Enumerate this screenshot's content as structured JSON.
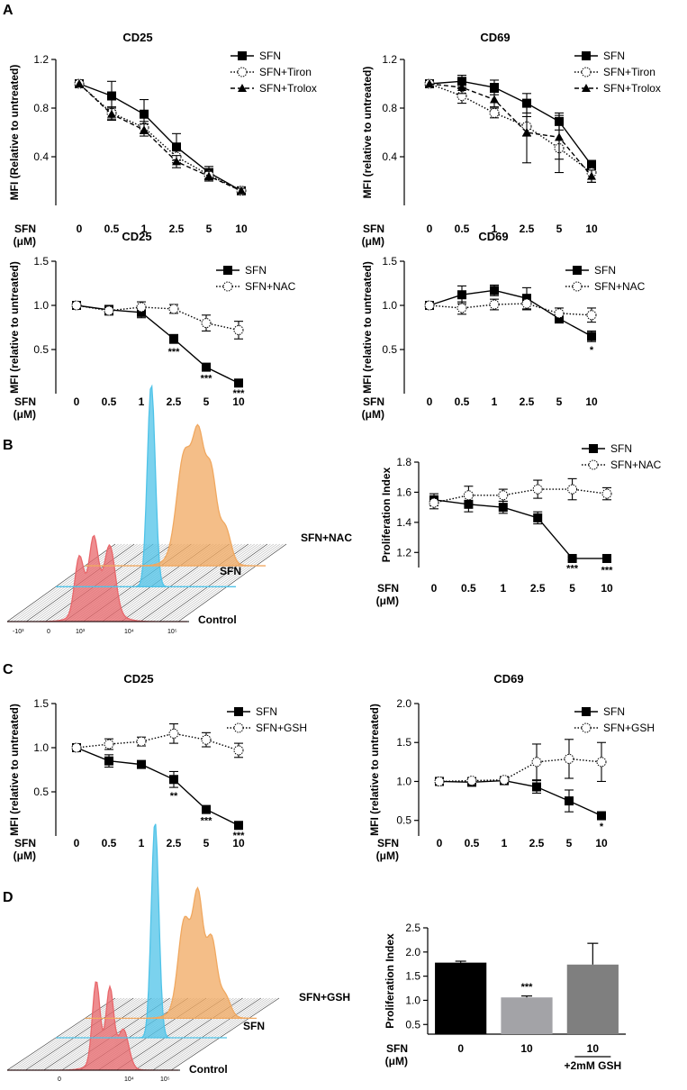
{
  "panels": [
    {
      "letter": "A"
    },
    {
      "letter": "B"
    },
    {
      "letter": "C"
    },
    {
      "letter": "D"
    }
  ],
  "flow": [
    {
      "labels": [
        "SFN+NAC",
        "SFN",
        "Control"
      ],
      "ticks": [
        "-10³",
        "0",
        "10³",
        "10⁴",
        "10⁵"
      ]
    },
    {
      "labels": [
        "SFN+GSH",
        "SFN",
        "Control"
      ],
      "ticks": [
        "0",
        "10⁴",
        "10⁵"
      ]
    }
  ],
  "colors": {
    "control": "#e8676b",
    "sfn": "#4fc3e8",
    "treated": "#f0a860"
  },
  "chart_data": [
    {
      "type": "line",
      "title": "CD25",
      "ylabel": "MFI (Relative to untreated)",
      "xprefix": [
        "SFN",
        "(μM)"
      ],
      "categories": [
        "0",
        "0.5",
        "1",
        "2.5",
        "5",
        "10"
      ],
      "ylim": [
        0,
        1.2
      ],
      "yticks": [
        "0.4",
        "0.8",
        "1.2"
      ],
      "series": [
        {
          "name": "SFN",
          "values": [
            1.0,
            0.9,
            0.75,
            0.48,
            0.27,
            0.12
          ],
          "err": [
            0,
            0.12,
            0.12,
            0.11,
            0.05,
            0.03
          ],
          "style": "solid",
          "marker": "square"
        },
        {
          "name": "SFN+Tiron",
          "values": [
            1.0,
            0.76,
            0.64,
            0.4,
            0.25,
            0.12
          ],
          "err": [
            0,
            0.05,
            0.05,
            0.05,
            0.04,
            0.02
          ],
          "style": "dotted",
          "marker": "circle"
        },
        {
          "name": "SFN+Trolox",
          "values": [
            1.0,
            0.75,
            0.62,
            0.36,
            0.24,
            0.12
          ],
          "err": [
            0,
            0.05,
            0.05,
            0.05,
            0.04,
            0.02
          ],
          "style": "dashed",
          "marker": "triangle"
        }
      ],
      "stars": []
    },
    {
      "type": "line",
      "title": "CD69",
      "ylabel": "MFI (relative to untreated)",
      "xprefix": [
        "SFN",
        "(μM)"
      ],
      "categories": [
        "0",
        "0.5",
        "1",
        "2.5",
        "5",
        "10"
      ],
      "ylim": [
        0,
        1.2
      ],
      "yticks": [
        "0.4",
        "0.8",
        "1.2"
      ],
      "series": [
        {
          "name": "SFN",
          "values": [
            1.0,
            1.02,
            0.97,
            0.84,
            0.69,
            0.33
          ],
          "err": [
            0,
            0.05,
            0.06,
            0.08,
            0.07,
            0.04
          ],
          "style": "solid",
          "marker": "square"
        },
        {
          "name": "SFN+Tiron",
          "values": [
            1.0,
            0.9,
            0.76,
            0.65,
            0.47,
            0.27
          ],
          "err": [
            0,
            0.06,
            0.04,
            0.08,
            0.2,
            0.08
          ],
          "style": "dotted",
          "marker": "circle"
        },
        {
          "name": "SFN+Trolox",
          "values": [
            1.0,
            0.97,
            0.87,
            0.6,
            0.56,
            0.24
          ],
          "err": [
            0,
            0.05,
            0.06,
            0.25,
            0.18,
            0.05
          ],
          "style": "dashed",
          "marker": "triangle"
        }
      ],
      "stars": []
    },
    {
      "type": "line",
      "title": "CD25",
      "ylabel": "MFI (relative to untreated)",
      "xprefix": [
        "SFN",
        "(μM)"
      ],
      "categories": [
        "0",
        "0.5",
        "1",
        "2.5",
        "5",
        "10"
      ],
      "ylim": [
        0,
        1.5
      ],
      "yticks": [
        "0.5",
        "1.0",
        "1.5"
      ],
      "series": [
        {
          "name": "SFN",
          "values": [
            1.0,
            0.95,
            0.92,
            0.62,
            0.3,
            0.12
          ],
          "err": [
            0,
            0.05,
            0.06,
            0.05,
            0.03,
            0.02
          ],
          "style": "solid",
          "marker": "square"
        },
        {
          "name": "SFN+NAC",
          "values": [
            1.0,
            0.94,
            0.98,
            0.96,
            0.8,
            0.72
          ],
          "err": [
            0,
            0.05,
            0.06,
            0.05,
            0.09,
            0.1
          ],
          "style": "dotted",
          "marker": "circle"
        }
      ],
      "stars": [
        {
          "i": 3,
          "text": "***"
        },
        {
          "i": 4,
          "text": "***"
        },
        {
          "i": 5,
          "text": "***"
        }
      ]
    },
    {
      "type": "line",
      "title": "CD69",
      "ylabel": "MFI (relative to untreated)",
      "xprefix": [
        "SFN",
        "(μM)"
      ],
      "categories": [
        "0",
        "0.5",
        "1",
        "2.5",
        "5",
        "10"
      ],
      "ylim": [
        0,
        1.5
      ],
      "yticks": [
        "0.5",
        "1.0",
        "1.5"
      ],
      "series": [
        {
          "name": "SFN",
          "values": [
            1.0,
            1.12,
            1.17,
            1.08,
            0.85,
            0.65
          ],
          "err": [
            0,
            0.1,
            0.06,
            0.12,
            0.05,
            0.06
          ],
          "style": "solid",
          "marker": "square"
        },
        {
          "name": "SFN+NAC",
          "values": [
            1.0,
            0.97,
            1.01,
            1.02,
            0.91,
            0.89
          ],
          "err": [
            0,
            0.07,
            0.06,
            0.07,
            0.06,
            0.08
          ],
          "style": "dotted",
          "marker": "circle"
        }
      ],
      "stars": [
        {
          "i": 5,
          "text": "*"
        }
      ]
    },
    {
      "type": "line",
      "title": "",
      "ylabel": "Proliferation Index",
      "xprefix": [
        "SFN",
        "(μM)"
      ],
      "categories": [
        "0",
        "0.5",
        "1",
        "2.5",
        "5",
        "10"
      ],
      "ylim": [
        1.1,
        1.8
      ],
      "yticks": [
        "1.2",
        "1.4",
        "1.6",
        "1.8"
      ],
      "series": [
        {
          "name": "SFN",
          "values": [
            1.55,
            1.52,
            1.5,
            1.43,
            1.16,
            1.16
          ],
          "err": [
            0.04,
            0.05,
            0.04,
            0.04,
            0.01,
            0.02
          ],
          "style": "solid",
          "marker": "square"
        },
        {
          "name": "SFN+NAC",
          "values": [
            1.53,
            1.58,
            1.58,
            1.62,
            1.62,
            1.59
          ],
          "err": [
            0.04,
            0.06,
            0.04,
            0.06,
            0.07,
            0.04
          ],
          "style": "dotted",
          "marker": "circle"
        }
      ],
      "stars": [
        {
          "i": 4,
          "text": "***"
        },
        {
          "i": 5,
          "text": "***"
        }
      ]
    },
    {
      "type": "line",
      "title": "CD25",
      "ylabel": "MFI (relative to untreated)",
      "xprefix": [
        "SFN",
        "(μM)"
      ],
      "categories": [
        "0",
        "0.5",
        "1",
        "2.5",
        "5",
        "10"
      ],
      "ylim": [
        0,
        1.5
      ],
      "yticks": [
        "0.5",
        "1.0",
        "1.5"
      ],
      "series": [
        {
          "name": "SFN",
          "values": [
            1.0,
            0.85,
            0.81,
            0.64,
            0.3,
            0.12
          ],
          "err": [
            0,
            0.07,
            0.03,
            0.09,
            0.03,
            0.02
          ],
          "style": "solid",
          "marker": "square"
        },
        {
          "name": "SFN+GSH",
          "values": [
            1.0,
            1.04,
            1.07,
            1.16,
            1.09,
            0.97
          ],
          "err": [
            0,
            0.06,
            0.05,
            0.11,
            0.08,
            0.08
          ],
          "style": "dotted",
          "marker": "circle"
        }
      ],
      "stars": [
        {
          "i": 3,
          "text": "**"
        },
        {
          "i": 4,
          "text": "***"
        },
        {
          "i": 5,
          "text": "***"
        }
      ]
    },
    {
      "type": "line",
      "title": "CD69",
      "ylabel": "MFI (relative to untreated)",
      "xprefix": [
        "SFN",
        "(μM)"
      ],
      "categories": [
        "0",
        "0.5",
        "1",
        "2.5",
        "5",
        "10"
      ],
      "ylim": [
        0.3,
        2.0
      ],
      "yticks": [
        "0.5",
        "1.0",
        "1.5",
        "2.0"
      ],
      "series": [
        {
          "name": "SFN",
          "values": [
            1.0,
            0.99,
            1.01,
            0.93,
            0.75,
            0.56
          ],
          "err": [
            0,
            0.05,
            0.03,
            0.08,
            0.14,
            0.03
          ],
          "style": "solid",
          "marker": "square"
        },
        {
          "name": "SFN+GSH",
          "values": [
            1.0,
            1.01,
            1.02,
            1.25,
            1.29,
            1.25
          ],
          "err": [
            0,
            0.04,
            0.04,
            0.23,
            0.25,
            0.25
          ],
          "style": "dotted",
          "marker": "circle"
        }
      ],
      "stars": [
        {
          "i": 5,
          "text": "*"
        }
      ]
    },
    {
      "type": "bar",
      "title": "",
      "ylabel": "Proliferation Index",
      "xprefix": [
        "SFN",
        "(μM)"
      ],
      "categories": [
        "0",
        "10",
        "10"
      ],
      "sublabels": [
        "",
        "",
        "+2mM GSH"
      ],
      "values": [
        1.78,
        1.06,
        1.74
      ],
      "err": [
        0.03,
        0.03,
        0.44
      ],
      "colors": [
        "#000000",
        "#a3a3a7",
        "#7f7f7f"
      ],
      "ylim": [
        0.3,
        2.5
      ],
      "yticks": [
        "0.5",
        "1.0",
        "1.5",
        "2.0",
        "2.5"
      ],
      "stars": [
        {
          "i": 1,
          "text": "***"
        }
      ]
    }
  ]
}
